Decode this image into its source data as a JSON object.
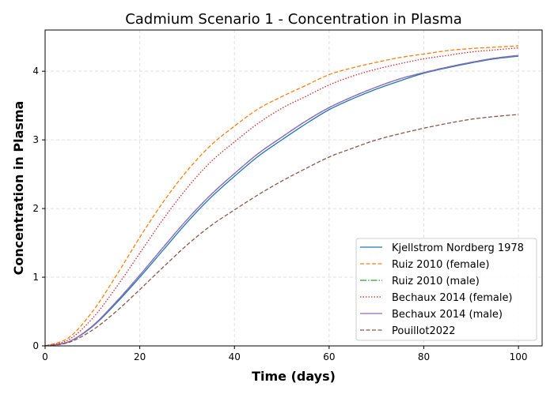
{
  "chart_data": {
    "type": "line",
    "title": "Cadmium Scenario 1 - Concentration in Plasma",
    "xlabel": "Time (days)",
    "ylabel": "Concentration in Plasma",
    "xlim": [
      0,
      105
    ],
    "ylim": [
      0,
      4.6
    ],
    "xticks": [
      0,
      20,
      40,
      60,
      80,
      100
    ],
    "yticks": [
      0,
      1,
      2,
      3,
      4
    ],
    "grid": true,
    "legend_position": "bottom-right",
    "x": [
      0,
      5,
      10,
      15,
      20,
      25,
      30,
      35,
      40,
      45,
      50,
      55,
      60,
      65,
      70,
      75,
      80,
      85,
      90,
      95,
      100
    ],
    "series": [
      {
        "name": "Kjellstrom Nordberg 1978",
        "color": "#1f77b4",
        "style": "solid",
        "values": [
          0,
          0.06,
          0.28,
          0.62,
          1.0,
          1.4,
          1.8,
          2.16,
          2.47,
          2.76,
          3.0,
          3.23,
          3.44,
          3.6,
          3.74,
          3.86,
          3.97,
          4.05,
          4.12,
          4.18,
          4.22
        ]
      },
      {
        "name": "Ruiz 2010 (female)",
        "color": "#ff7f0e",
        "style": "dashed",
        "values": [
          0,
          0.12,
          0.5,
          1.02,
          1.58,
          2.1,
          2.55,
          2.92,
          3.2,
          3.45,
          3.63,
          3.79,
          3.95,
          4.05,
          4.13,
          4.2,
          4.25,
          4.3,
          4.33,
          4.35,
          4.37
        ]
      },
      {
        "name": "Ruiz 2010 (male)",
        "color": "#2ca02c",
        "style": "dashdot",
        "values": [
          0,
          0.06,
          0.29,
          0.64,
          1.03,
          1.44,
          1.84,
          2.2,
          2.51,
          2.8,
          3.04,
          3.27,
          3.47,
          3.63,
          3.77,
          3.89,
          3.98,
          4.06,
          4.13,
          4.19,
          4.23
        ]
      },
      {
        "name": "Bechaux 2014 (female)",
        "color": "#d62728",
        "style": "dotted",
        "values": [
          0,
          0.09,
          0.4,
          0.85,
          1.35,
          1.85,
          2.3,
          2.68,
          2.97,
          3.24,
          3.46,
          3.63,
          3.8,
          3.93,
          4.03,
          4.11,
          4.18,
          4.23,
          4.28,
          4.31,
          4.34
        ]
      },
      {
        "name": "Bechaux 2014 (male)",
        "color": "#9467bd",
        "style": "solid",
        "values": [
          0,
          0.06,
          0.29,
          0.64,
          1.03,
          1.44,
          1.84,
          2.2,
          2.51,
          2.8,
          3.04,
          3.27,
          3.47,
          3.63,
          3.77,
          3.89,
          3.98,
          4.06,
          4.13,
          4.19,
          4.23
        ]
      },
      {
        "name": "Pouillot2022",
        "color": "#8c564b",
        "style": "dashed",
        "values": [
          0,
          0.05,
          0.23,
          0.5,
          0.82,
          1.15,
          1.47,
          1.75,
          1.98,
          2.2,
          2.4,
          2.58,
          2.75,
          2.88,
          3.0,
          3.09,
          3.17,
          3.24,
          3.3,
          3.34,
          3.37
        ]
      }
    ]
  }
}
